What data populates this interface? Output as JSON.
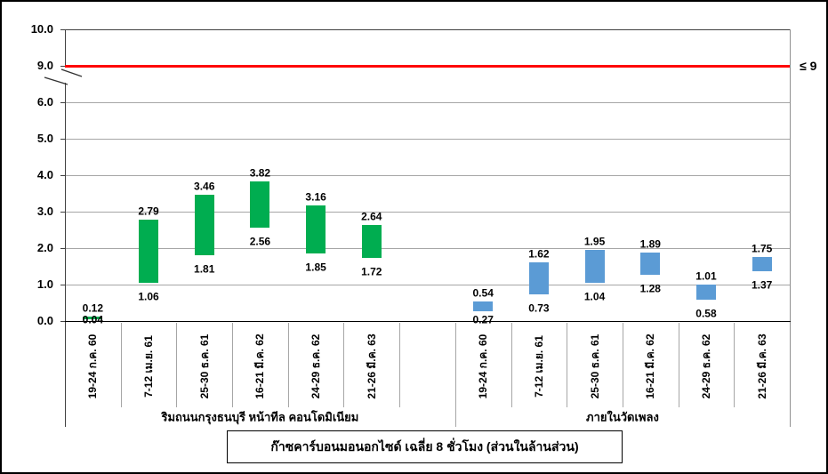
{
  "chart_data": {
    "type": "bar",
    "subtype": "floating-range-bars",
    "title": "ก๊าซคาร์บอนมอนอกไซด์ เฉลี่ย 8 ชั่วโมง (ส่วนในล้านส่วน)",
    "axis": {
      "ylim_display": [
        0,
        10
      ],
      "axis_break_between": [
        6,
        9
      ],
      "grid": "on",
      "yticks": [
        {
          "value": 0,
          "label": "0.0"
        },
        {
          "value": 1,
          "label": "1.0"
        },
        {
          "value": 2,
          "label": "2.0"
        },
        {
          "value": 3,
          "label": "3.0"
        },
        {
          "value": 4,
          "label": "4.0"
        },
        {
          "value": 5,
          "label": "5.0"
        },
        {
          "value": 6,
          "label": "6.0"
        },
        {
          "value": 9,
          "label": "9.0"
        },
        {
          "value": 10,
          "label": "10.0"
        }
      ]
    },
    "limit_line": {
      "value": 9,
      "label": "≤ 9",
      "color": "#FF0000"
    },
    "groups": [
      {
        "label": "ริมถนนกรุงธนบุรี หน้าทีล คอนโดมิเนียม",
        "color": "#00AD50",
        "points": [
          {
            "period": "19-24 ก.ค. 60",
            "min": 0.04,
            "max": 0.12,
            "min_label": "0.04",
            "max_label": "0.12"
          },
          {
            "period": "7-12 เม.ย. 61",
            "min": 1.06,
            "max": 2.79,
            "min_label": "1.06",
            "max_label": "2.79"
          },
          {
            "period": "25-30 ธ.ค. 61",
            "min": 1.81,
            "max": 3.46,
            "min_label": "1.81",
            "max_label": "3.46"
          },
          {
            "period": "16-21 มี.ค. 62",
            "min": 2.56,
            "max": 3.82,
            "min_label": "2.56",
            "max_label": "3.82"
          },
          {
            "period": "24-29 ธ.ค. 62",
            "min": 1.85,
            "max": 3.16,
            "min_label": "1.85",
            "max_label": "3.16"
          },
          {
            "period": "21-26 มี.ค. 63",
            "min": 1.72,
            "max": 2.64,
            "min_label": "1.72",
            "max_label": "2.64"
          }
        ]
      },
      {
        "label": "ภายในวัดเพลง",
        "color": "#5B9BD5",
        "points": [
          {
            "period": "19-24 ก.ค. 60",
            "min": 0.27,
            "max": 0.54,
            "min_label": "0.27",
            "max_label": "0.54"
          },
          {
            "period": "7-12 เม.ย. 61",
            "min": 0.73,
            "max": 1.62,
            "min_label": "0.73",
            "max_label": "1.62"
          },
          {
            "period": "25-30 ธ.ค. 61",
            "min": 1.04,
            "max": 1.95,
            "min_label": "1.04",
            "max_label": "1.95"
          },
          {
            "period": "16-21 มี.ค. 62",
            "min": 1.28,
            "max": 1.89,
            "min_label": "1.28",
            "max_label": "1.89"
          },
          {
            "period": "24-29 ธ.ค. 62",
            "min": 0.58,
            "max": 1.01,
            "min_label": "0.58",
            "max_label": "1.01"
          },
          {
            "period": "21-26 มี.ค. 63",
            "min": 1.37,
            "max": 1.75,
            "min_label": "1.37",
            "max_label": "1.75"
          }
        ]
      }
    ]
  },
  "colors": {
    "grid": "#A6A6A6",
    "axis_dark": "#404040",
    "plot_border": "#909090",
    "bar_green": "#00AD50",
    "bar_blue": "#5B9BD5",
    "limit_red": "#FF0000"
  }
}
